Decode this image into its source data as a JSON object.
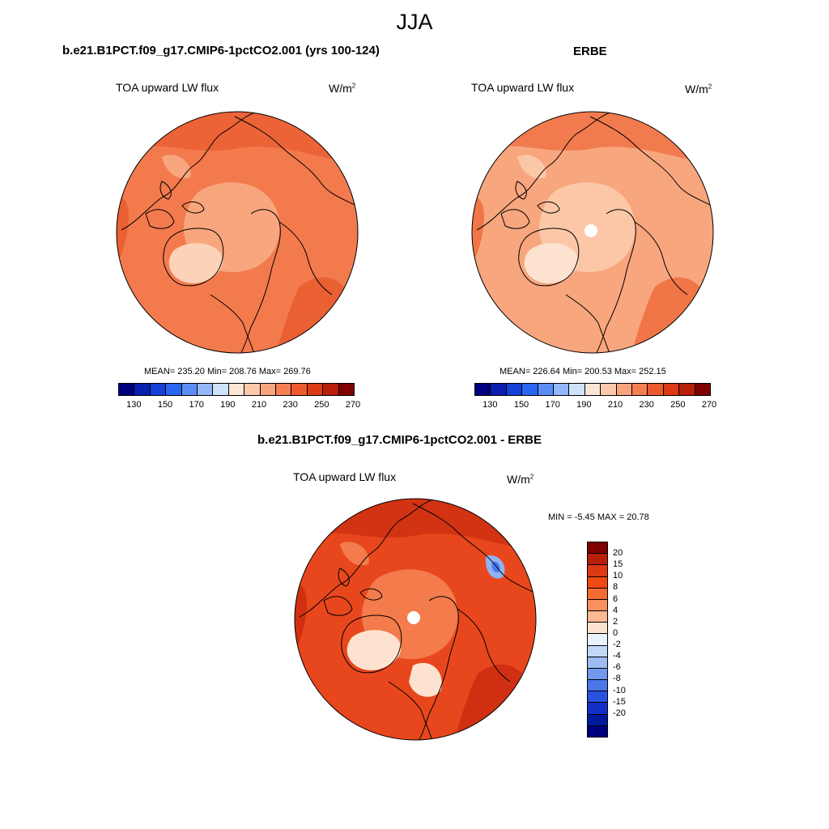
{
  "season": "JJA",
  "panels": [
    {
      "title": "b.e21.B1PCT.f09_g17.CMIP6-1pctCO2.001 (yrs 100-124)",
      "variable": "TOA upward LW flux",
      "units": "W/m",
      "units_sup": "2",
      "stats": "MEAN= 235.20  Min= 208.76  Max= 269.76"
    },
    {
      "title": "ERBE",
      "variable": "TOA upward LW flux",
      "units": "W/m",
      "units_sup": "2",
      "stats": "MEAN= 226.64  Min= 200.53  Max= 252.15"
    },
    {
      "title": "b.e21.B1PCT.f09_g17.CMIP6-1pctCO2.001 - ERBE",
      "variable": "TOA upward LW flux",
      "units": "W/m",
      "units_sup": "2",
      "stats": "MIN =  -5.45 MAX =  20.78"
    }
  ],
  "abs_colorbar": {
    "colors": [
      "#00007f",
      "#0a1fb0",
      "#1540d8",
      "#2a66f0",
      "#5b8ef5",
      "#93b7f8",
      "#cfe2fb",
      "#fde6d6",
      "#fbc9ab",
      "#f8a57f",
      "#f47f55",
      "#ee5a30",
      "#dc3a14",
      "#b81f08",
      "#7f0000"
    ],
    "labels": [
      "130",
      "150",
      "170",
      "190",
      "210",
      "230",
      "250",
      "270"
    ]
  },
  "diff_colorbar": {
    "colors": [
      "#7f0000",
      "#b81f08",
      "#dc3a14",
      "#f24a14",
      "#f76a30",
      "#f99060",
      "#fbb891",
      "#fde3cf",
      "#e9f1fb",
      "#c3d8f7",
      "#9dbcf3",
      "#7099ee",
      "#4a77ea",
      "#2952e0",
      "#1230c8",
      "#001a9e",
      "#00007f"
    ],
    "labels": [
      "20",
      "15",
      "10",
      "8",
      "6",
      "4",
      "2",
      "0",
      "-2",
      "-4",
      "-6",
      "-8",
      "-10",
      "-15",
      "-20"
    ]
  },
  "maps": [
    {
      "base": "#f37a4d",
      "inner": "#f8a67e",
      "high": "#e75a2d",
      "low": "#fcd2b8",
      "pole": false
    },
    {
      "base": "#f8a67e",
      "inner": "#fbc7a7",
      "high": "#ee6a3a",
      "low": "#fde3cf",
      "pole": true
    },
    {
      "base": "#e8471d",
      "inner": "#f37b4c",
      "high": "#c92b0f",
      "low": "#fde3cf",
      "neg": "#8fb2f2",
      "pole": true
    }
  ]
}
